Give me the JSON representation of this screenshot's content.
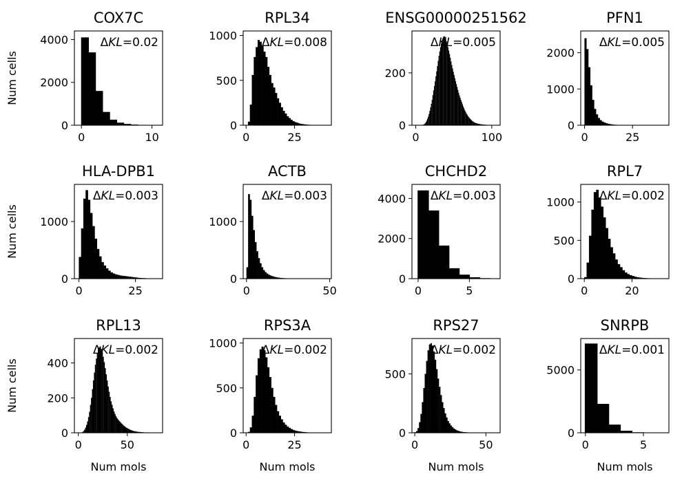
{
  "figure": {
    "ylabel": "Num cells",
    "xlabel": "Num mols",
    "kl_prefix": "ΔKL="
  },
  "chart_data": [
    {
      "type": "bar",
      "title": "COX7C",
      "annotation": "0.02",
      "xlim": [
        -1,
        11.5
      ],
      "ylim": [
        0,
        4400
      ],
      "xticks": [
        0,
        10
      ],
      "yticks": [
        0,
        2000,
        4000
      ],
      "bin_width": 1,
      "x": [
        0,
        1,
        2,
        3,
        4,
        5,
        6,
        7,
        8,
        9,
        10
      ],
      "values": [
        4100,
        3400,
        1600,
        620,
        260,
        120,
        60,
        30,
        15,
        8,
        5
      ]
    },
    {
      "type": "bar",
      "title": "RPL34",
      "annotation": "0.008",
      "xlim": [
        -1.5,
        44
      ],
      "ylim": [
        0,
        1050
      ],
      "xticks": [
        0,
        25
      ],
      "yticks": [
        0,
        500,
        1000
      ],
      "bin_width": 1,
      "x": [
        1,
        2,
        3,
        4,
        5,
        6,
        7,
        8,
        9,
        10,
        11,
        12,
        13,
        14,
        15,
        16,
        17,
        18,
        19,
        20,
        21,
        22,
        23,
        24,
        25,
        26,
        27,
        28,
        29,
        30,
        31,
        32,
        33,
        34,
        35,
        36,
        37,
        38,
        39,
        40
      ],
      "values": [
        40,
        230,
        560,
        760,
        870,
        950,
        930,
        890,
        820,
        760,
        650,
        560,
        470,
        420,
        360,
        300,
        250,
        200,
        160,
        130,
        100,
        80,
        60,
        45,
        35,
        28,
        20,
        15,
        12,
        9,
        7,
        5,
        4,
        3,
        3,
        2,
        2,
        1,
        1,
        1
      ]
    },
    {
      "type": "bar",
      "title": "ENSG00000251562",
      "annotation": "0.005",
      "xlim": [
        -5,
        111
      ],
      "ylim": [
        0,
        360
      ],
      "xticks": [
        0,
        100
      ],
      "yticks": [
        0,
        200
      ],
      "bin_width": 1,
      "x": [
        10,
        11,
        12,
        13,
        14,
        15,
        16,
        17,
        18,
        19,
        20,
        21,
        22,
        23,
        24,
        25,
        26,
        27,
        28,
        29,
        30,
        31,
        32,
        33,
        34,
        35,
        36,
        37,
        38,
        39,
        40,
        41,
        42,
        43,
        44,
        45,
        46,
        47,
        48,
        49,
        50,
        51,
        52,
        53,
        54,
        55,
        56,
        57,
        58,
        59,
        60,
        61,
        62,
        63,
        64,
        65,
        66,
        67,
        68,
        69,
        70,
        71,
        72,
        73,
        74,
        75,
        76,
        77,
        78,
        79,
        80,
        81,
        82,
        83,
        84,
        85,
        86,
        87,
        88,
        89,
        90,
        91,
        92,
        93,
        94,
        95,
        96,
        97,
        98,
        99,
        100
      ],
      "values": [
        3,
        5,
        8,
        12,
        18,
        25,
        33,
        43,
        55,
        68,
        82,
        97,
        115,
        133,
        150,
        168,
        187,
        206,
        226,
        246,
        265,
        282,
        298,
        312,
        323,
        332,
        338,
        340,
        338,
        330,
        320,
        310,
        298,
        285,
        272,
        258,
        244,
        230,
        217,
        204,
        192,
        180,
        168,
        157,
        146,
        135,
        124,
        114,
        105,
        96,
        88,
        80,
        72,
        65,
        58,
        52,
        46,
        41,
        36,
        32,
        28,
        25,
        22,
        19,
        16,
        14,
        12,
        10,
        9,
        8,
        7,
        6,
        5,
        5,
        4,
        4,
        3,
        3,
        3,
        2,
        2,
        2,
        2,
        1,
        1,
        1,
        1,
        1,
        1,
        1,
        1
      ]
    },
    {
      "type": "bar",
      "title": "PFN1",
      "annotation": "0.005",
      "xlim": [
        -2,
        44
      ],
      "ylim": [
        0,
        2600
      ],
      "xticks": [
        0,
        25
      ],
      "yticks": [
        0,
        1000,
        2000
      ],
      "bin_width": 1,
      "x": [
        0,
        1,
        2,
        3,
        4,
        5,
        6,
        7,
        8,
        9,
        10,
        11,
        12,
        13,
        14,
        15,
        16,
        17,
        18,
        19,
        20,
        21,
        22,
        23,
        24,
        25,
        26,
        27,
        28,
        29,
        30
      ],
      "values": [
        2400,
        2100,
        1600,
        1100,
        700,
        450,
        300,
        200,
        140,
        100,
        75,
        55,
        40,
        30,
        22,
        16,
        12,
        9,
        7,
        5,
        4,
        3,
        3,
        2,
        2,
        1,
        1,
        1,
        1,
        1,
        1
      ]
    },
    {
      "type": "bar",
      "title": "HLA-DPB1",
      "annotation": "0.003",
      "xlim": [
        -2,
        37
      ],
      "ylim": [
        0,
        1650
      ],
      "xticks": [
        0,
        25
      ],
      "yticks": [
        0,
        1000
      ],
      "bin_width": 1,
      "x": [
        0,
        1,
        2,
        3,
        4,
        5,
        6,
        7,
        8,
        9,
        10,
        11,
        12,
        13,
        14,
        15,
        16,
        17,
        18,
        19,
        20,
        21,
        22,
        23,
        24,
        25,
        26,
        27,
        28,
        29,
        30,
        31,
        32
      ],
      "values": [
        380,
        880,
        1400,
        1550,
        1380,
        1150,
        920,
        700,
        520,
        390,
        290,
        230,
        180,
        140,
        110,
        90,
        75,
        65,
        55,
        50,
        45,
        40,
        35,
        30,
        25,
        20,
        15,
        12,
        10,
        8,
        5,
        3,
        2
      ]
    },
    {
      "type": "bar",
      "title": "ACTB",
      "annotation": "0.003",
      "xlim": [
        -2,
        51
      ],
      "ylim": [
        0,
        1650
      ],
      "xticks": [
        0,
        50
      ],
      "yticks": [
        0,
        1000
      ],
      "bin_width": 1,
      "x": [
        0,
        1,
        2,
        3,
        4,
        5,
        6,
        7,
        8,
        9,
        10,
        11,
        12,
        13,
        14,
        15,
        16,
        17,
        18,
        19,
        20,
        21,
        22,
        23,
        24,
        25,
        26,
        27,
        28,
        29,
        30,
        31,
        32,
        33,
        34,
        35,
        36,
        37,
        38,
        39,
        40,
        41,
        42,
        43,
        44,
        45,
        46,
        47,
        48
      ],
      "values": [
        200,
        1480,
        1380,
        1100,
        850,
        640,
        480,
        360,
        270,
        200,
        150,
        115,
        90,
        70,
        55,
        45,
        35,
        28,
        22,
        18,
        14,
        11,
        9,
        7,
        6,
        5,
        4,
        3,
        3,
        2,
        2,
        2,
        1,
        1,
        1,
        1,
        1,
        1,
        1,
        1,
        1,
        1,
        1,
        1,
        1,
        1,
        1,
        1,
        1
      ]
    },
    {
      "type": "bar",
      "title": "CHCHD2",
      "annotation": "0.003",
      "xlim": [
        -0.6,
        8
      ],
      "ylim": [
        0,
        4700
      ],
      "xticks": [
        0,
        5
      ],
      "yticks": [
        0,
        2000,
        4000
      ],
      "bin_width": 1,
      "x": [
        0,
        1,
        2,
        3,
        4,
        5,
        6,
        7
      ],
      "values": [
        4400,
        3400,
        1650,
        520,
        200,
        70,
        25,
        10
      ]
    },
    {
      "type": "bar",
      "title": "RPL7",
      "annotation": "0.002",
      "xlim": [
        -1.5,
        35.5
      ],
      "ylim": [
        0,
        1230
      ],
      "xticks": [
        0,
        20
      ],
      "yticks": [
        0,
        500,
        1000
      ],
      "bin_width": 1,
      "x": [
        0,
        1,
        2,
        3,
        4,
        5,
        6,
        7,
        8,
        9,
        10,
        11,
        12,
        13,
        14,
        15,
        16,
        17,
        18,
        19,
        20,
        21,
        22,
        23,
        24,
        25,
        26,
        27,
        28,
        29,
        30,
        31,
        32,
        33
      ],
      "values": [
        20,
        210,
        560,
        900,
        1130,
        1160,
        1060,
        940,
        800,
        660,
        520,
        410,
        330,
        250,
        190,
        150,
        110,
        80,
        60,
        45,
        35,
        25,
        18,
        14,
        10,
        8,
        6,
        5,
        4,
        3,
        2,
        2,
        1,
        1
      ]
    },
    {
      "type": "bar",
      "title": "RPL13",
      "annotation": "0.002",
      "xlim": [
        -4,
        86
      ],
      "ylim": [
        0,
        540
      ],
      "xticks": [
        0,
        50
      ],
      "yticks": [
        0,
        200,
        400
      ],
      "bin_width": 1,
      "x": [
        4,
        5,
        6,
        7,
        8,
        9,
        10,
        11,
        12,
        13,
        14,
        15,
        16,
        17,
        18,
        19,
        20,
        21,
        22,
        23,
        24,
        25,
        26,
        27,
        28,
        29,
        30,
        31,
        32,
        33,
        34,
        35,
        36,
        37,
        38,
        39,
        40,
        41,
        42,
        43,
        44,
        45,
        46,
        47,
        48,
        49,
        50,
        51,
        52,
        53,
        54,
        55,
        56,
        57,
        58,
        59,
        60,
        61,
        62,
        63,
        64,
        65,
        66,
        67,
        68,
        69,
        70,
        71,
        72,
        73,
        74,
        75
      ],
      "values": [
        5,
        10,
        18,
        30,
        45,
        65,
        90,
        120,
        160,
        200,
        250,
        300,
        345,
        390,
        425,
        455,
        480,
        490,
        495,
        480,
        460,
        435,
        405,
        370,
        335,
        300,
        265,
        235,
        205,
        180,
        160,
        140,
        122,
        108,
        95,
        85,
        77,
        70,
        64,
        58,
        52,
        46,
        41,
        36,
        32,
        28,
        25,
        22,
        19,
        16,
        14,
        12,
        10,
        9,
        8,
        7,
        6,
        5,
        5,
        4,
        4,
        3,
        3,
        2,
        2,
        2,
        2,
        1,
        1,
        1,
        1,
        1
      ]
    },
    {
      "type": "bar",
      "title": "RPS3A",
      "annotation": "0.002",
      "xlim": [
        -1.5,
        44
      ],
      "ylim": [
        0,
        1050
      ],
      "xticks": [
        0,
        25
      ],
      "yticks": [
        0,
        500,
        1000
      ],
      "bin_width": 1,
      "x": [
        1,
        2,
        3,
        4,
        5,
        6,
        7,
        8,
        9,
        10,
        11,
        12,
        13,
        14,
        15,
        16,
        17,
        18,
        19,
        20,
        21,
        22,
        23,
        24,
        25,
        26,
        27,
        28,
        29,
        30,
        31,
        32,
        33,
        34,
        35,
        36,
        37,
        38,
        39,
        40
      ],
      "values": [
        10,
        60,
        190,
        400,
        640,
        830,
        930,
        960,
        920,
        840,
        730,
        620,
        500,
        400,
        310,
        240,
        190,
        150,
        115,
        90,
        70,
        55,
        42,
        32,
        25,
        19,
        15,
        12,
        9,
        7,
        5,
        4,
        3,
        3,
        2,
        2,
        1,
        1,
        1,
        1
      ]
    },
    {
      "type": "bar",
      "title": "RPS27",
      "annotation": "0.002",
      "xlim": [
        -2,
        60
      ],
      "ylim": [
        0,
        800
      ],
      "xticks": [
        0,
        50
      ],
      "yticks": [
        0,
        500
      ],
      "bin_width": 1,
      "x": [
        0,
        1,
        2,
        3,
        4,
        5,
        6,
        7,
        8,
        9,
        10,
        11,
        12,
        13,
        14,
        15,
        16,
        17,
        18,
        19,
        20,
        21,
        22,
        23,
        24,
        25,
        26,
        27,
        28,
        29,
        30,
        31,
        32,
        33,
        34,
        35,
        36,
        37,
        38,
        39,
        40,
        41,
        42,
        43,
        44,
        45,
        46,
        47,
        48,
        49,
        50
      ],
      "values": [
        5,
        15,
        40,
        90,
        160,
        260,
        380,
        500,
        610,
        700,
        750,
        760,
        740,
        690,
        620,
        540,
        460,
        390,
        320,
        260,
        210,
        165,
        130,
        100,
        80,
        62,
        48,
        37,
        29,
        22,
        17,
        13,
        10,
        8,
        6,
        5,
        4,
        3,
        3,
        2,
        2,
        2,
        1,
        1,
        1,
        1,
        1,
        1,
        1,
        1,
        1
      ]
    },
    {
      "type": "bar",
      "title": "SNRPB",
      "annotation": "0.001",
      "xlim": [
        -0.4,
        7.2
      ],
      "ylim": [
        0,
        7500
      ],
      "xticks": [
        0,
        5
      ],
      "yticks": [
        0,
        5000
      ],
      "bin_width": 1,
      "x": [
        0,
        1,
        2,
        3,
        4,
        5,
        6
      ],
      "values": [
        7100,
        2300,
        650,
        160,
        40,
        10,
        3
      ]
    }
  ]
}
